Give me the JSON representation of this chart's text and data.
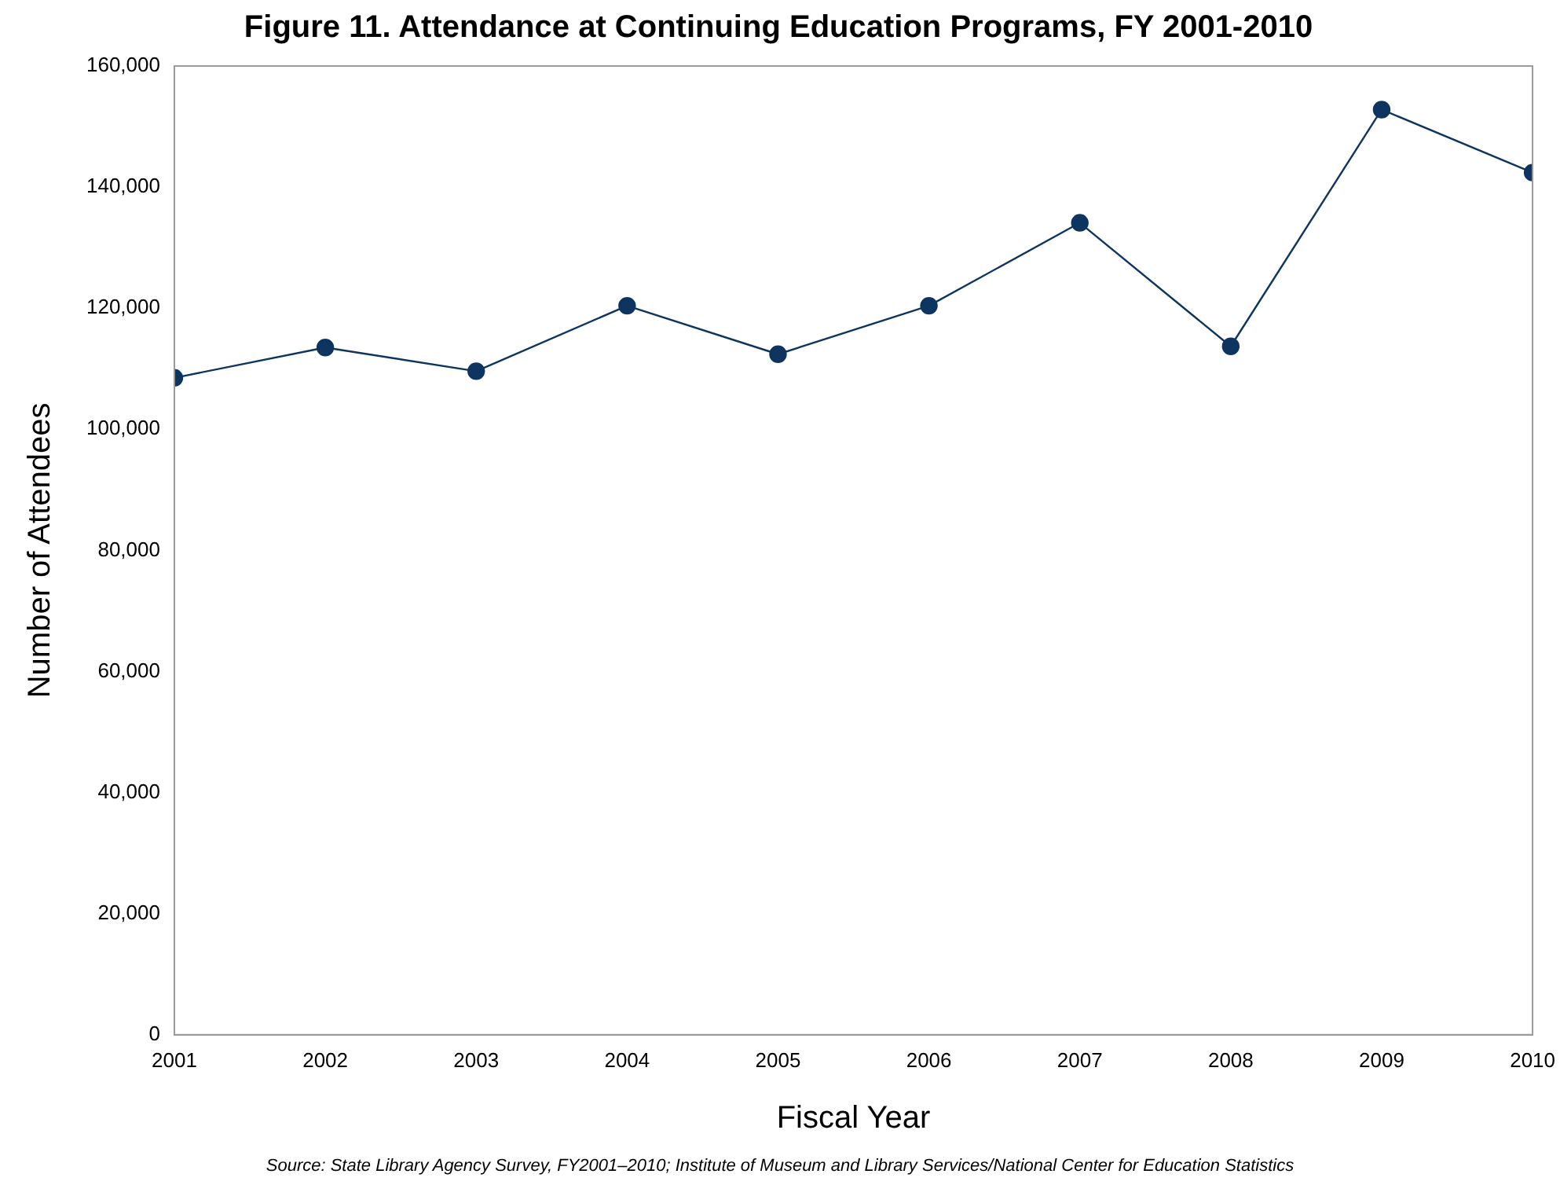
{
  "chart_data": {
    "type": "line",
    "title": "Figure 11. Attendance at Continuing Education Programs, FY 2001-2010",
    "xlabel": "Fiscal Year",
    "ylabel": "Number of Attendees",
    "x": [
      2001,
      2002,
      2003,
      2004,
      2005,
      2006,
      2007,
      2008,
      2009,
      2010
    ],
    "series": [
      {
        "color": "#0d3560",
        "values": [
          108500,
          113500,
          109600,
          120400,
          112400,
          120400,
          134100,
          113700,
          152800,
          142400
        ]
      }
    ],
    "xlim": [
      2001,
      2010
    ],
    "xticks": [
      2001,
      2002,
      2003,
      2004,
      2005,
      2006,
      2007,
      2008,
      2009,
      2010
    ],
    "ylim": [
      0,
      160000
    ],
    "yticks": [
      {
        "value": 0,
        "label": "0"
      },
      {
        "value": 20000,
        "label": "20,000"
      },
      {
        "value": 40000,
        "label": "40,000"
      },
      {
        "value": 60000,
        "label": "60,000"
      },
      {
        "value": 80000,
        "label": "80,000"
      },
      {
        "value": 100000,
        "label": "100,000"
      },
      {
        "value": 120000,
        "label": "120,000"
      },
      {
        "value": 140000,
        "label": "140,000"
      },
      {
        "value": 160000,
        "label": "160,000"
      }
    ],
    "grid": false,
    "legend": false,
    "marker": "circle",
    "line_style": "solid",
    "annotations": [
      "Source: State Library Agency Survey, FY2001–2010; Institute of Museum and Library Services/National Center for Education Statistics"
    ]
  }
}
